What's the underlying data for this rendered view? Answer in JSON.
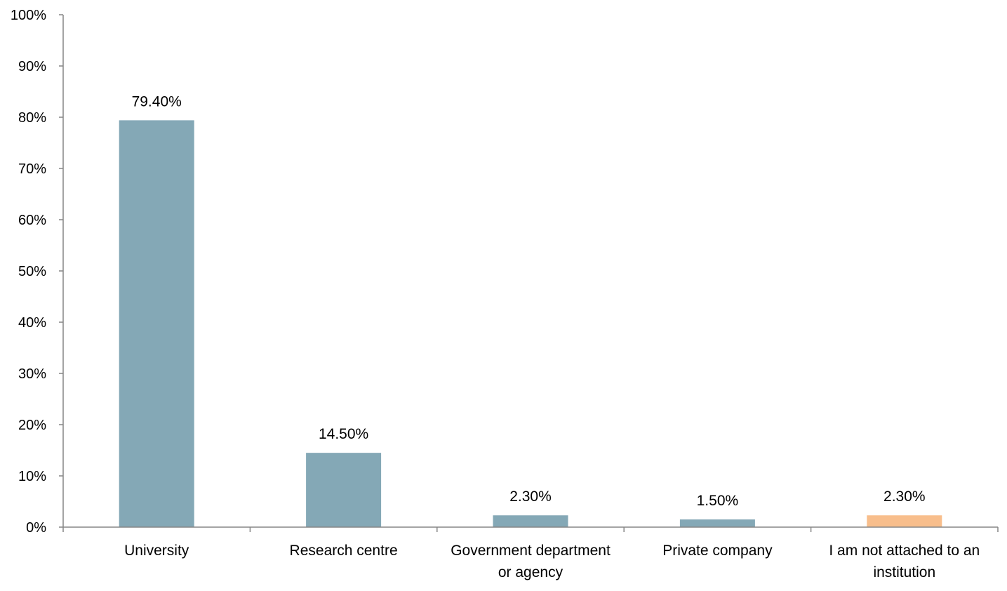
{
  "chart_data": {
    "type": "bar",
    "categories": [
      [
        "University"
      ],
      [
        "Research centre"
      ],
      [
        "Government department",
        "or agency"
      ],
      [
        "Private company"
      ],
      [
        "I am not attached to an",
        "institution"
      ]
    ],
    "values": [
      79.4,
      14.5,
      2.3,
      1.5,
      2.3
    ],
    "data_labels": [
      "79.40%",
      "14.50%",
      "2.30%",
      "1.50%",
      "2.30%"
    ],
    "bar_colors": [
      "#84a8b6",
      "#84a8b6",
      "#84a8b6",
      "#84a8b6",
      "#f8be8c"
    ],
    "ylim": [
      0,
      100
    ],
    "y_ticks": [
      0,
      10,
      20,
      30,
      40,
      50,
      60,
      70,
      80,
      90,
      100
    ],
    "y_tick_labels": [
      "0%",
      "10%",
      "20%",
      "30%",
      "40%",
      "50%",
      "60%",
      "70%",
      "80%",
      "90%",
      "100%"
    ],
    "title": "",
    "xlabel": "",
    "ylabel": "",
    "grid": false,
    "legend": "none",
    "axis_color": "#868686"
  }
}
